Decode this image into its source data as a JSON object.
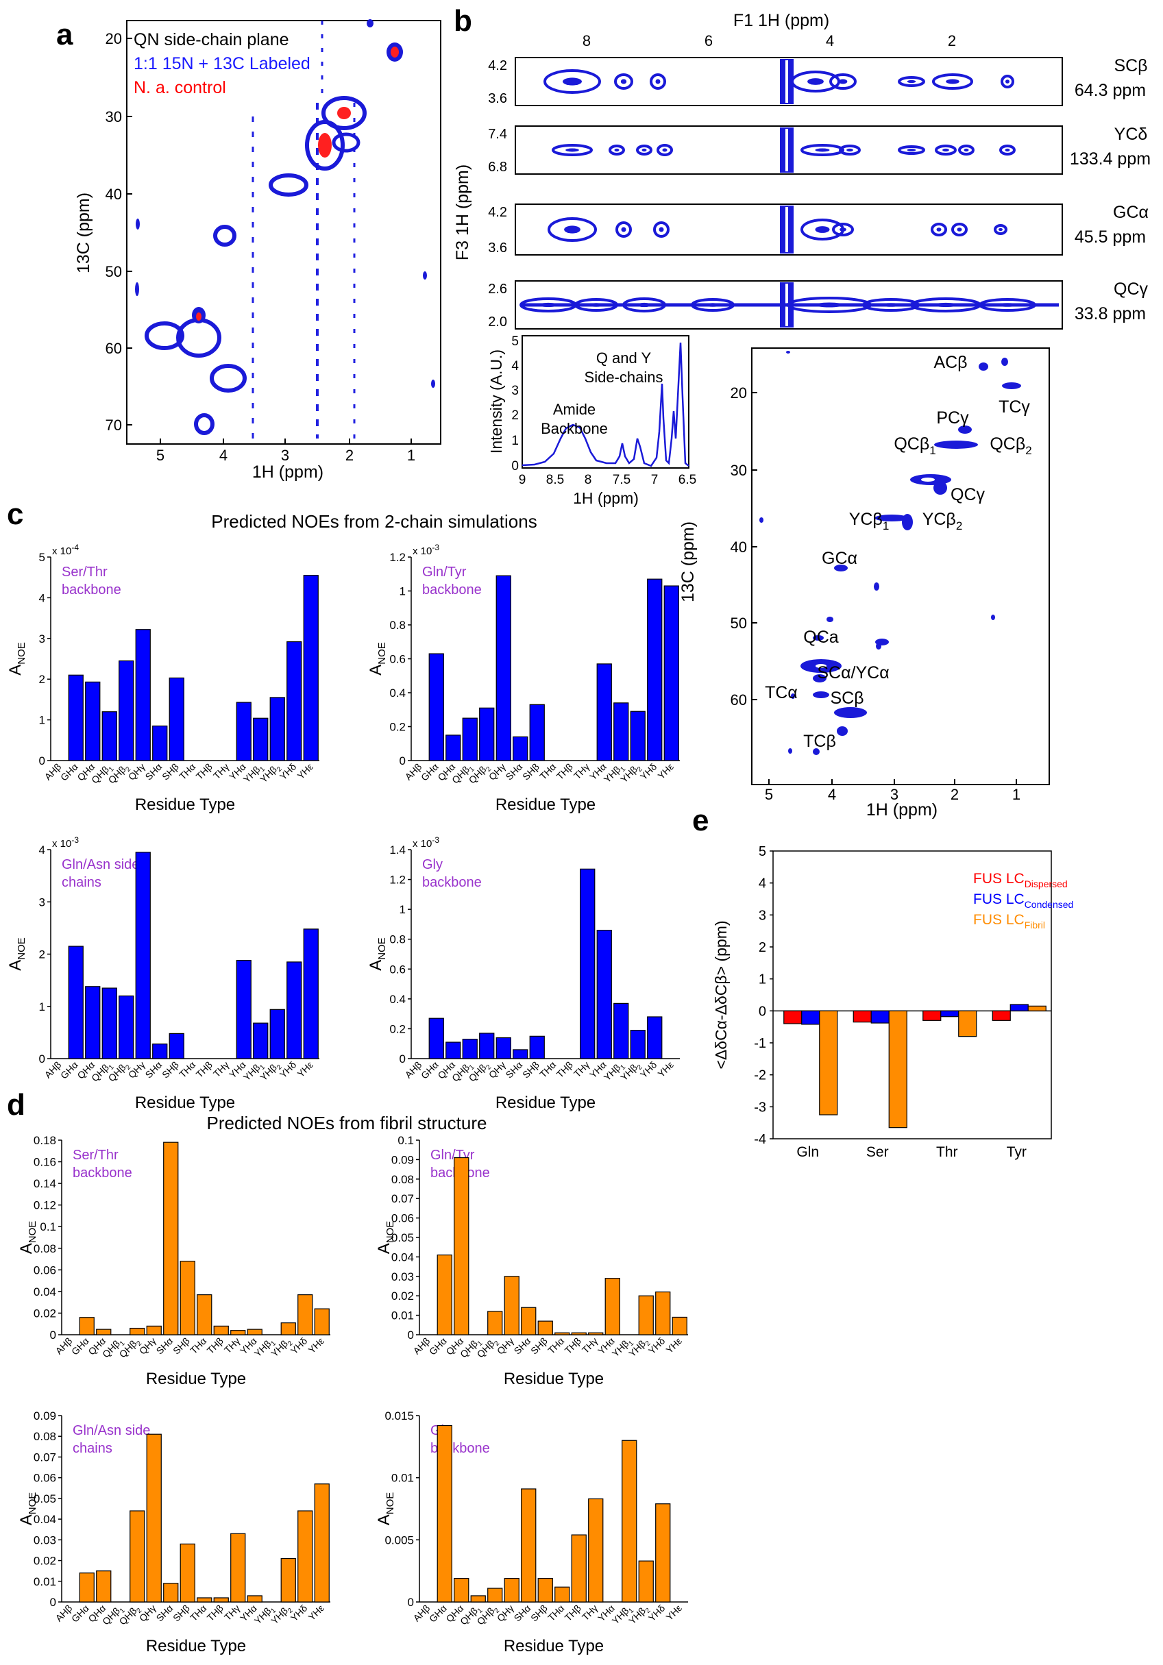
{
  "panels": {
    "a": {
      "label": "a",
      "legend": [
        "QN side-chain plane",
        "1:1 15N + 13C Labeled",
        "N. a. control"
      ],
      "legend_colors": [
        "#000000",
        "#1a1aff",
        "#ff0000"
      ],
      "xlabel": "1H (ppm)",
      "ylabel": "13C (ppm)",
      "xticks": [
        "5",
        "4",
        "3",
        "2",
        "1"
      ],
      "yticks": [
        "20",
        "30",
        "40",
        "50",
        "60",
        "70"
      ]
    },
    "b": {
      "label": "b",
      "f1_label": "F1 1H (ppm)",
      "f3_label": "F3 1H (ppm)",
      "top_ticks": [
        "8",
        "6",
        "4",
        "2"
      ],
      "strips": [
        {
          "name": "SCβ",
          "ppm": "64.3 ppm",
          "yticks": [
            "4.2",
            "3.6"
          ]
        },
        {
          "name": "YCδ",
          "ppm": "133.4 ppm",
          "yticks": [
            "7.4",
            "6.8"
          ]
        },
        {
          "name": "GCα",
          "ppm": "45.5 ppm",
          "yticks": [
            "4.2",
            "3.6"
          ]
        },
        {
          "name": "QCγ",
          "ppm": "33.8 ppm",
          "yticks": [
            "2.6",
            "2.0"
          ]
        }
      ],
      "spectrum1d": {
        "ylabel": "Intensity (A.U.)",
        "xlabel": "1H (ppm)",
        "xticks": [
          "9",
          "8.5",
          "8",
          "7.5",
          "7",
          "6.5"
        ],
        "yticks": [
          "0",
          "1",
          "2",
          "3",
          "4",
          "5"
        ],
        "annot1": [
          "Q and Y",
          "Side-chains"
        ],
        "annot2": [
          "Amide",
          "Backbone"
        ]
      },
      "hsqc": {
        "xlabel": "1H (ppm)",
        "ylabel": "13C (ppm)",
        "xticks": [
          "5",
          "4",
          "3",
          "2",
          "1"
        ],
        "yticks": [
          "20",
          "30",
          "40",
          "50",
          "60"
        ],
        "labels": [
          "ACβ",
          "TCγ",
          "PCγ",
          "QCβ1",
          "QCβ2",
          "QCγ",
          "YCβ1",
          "YCβ2",
          "GCα",
          "QCa",
          "SCα/YCα",
          "TCα",
          "SCβ",
          "TCβ"
        ]
      }
    },
    "c": {
      "label": "c",
      "title": "Predicted NOEs from 2-chain simulations"
    },
    "d": {
      "label": "d",
      "title": "Predicted NOEs from fibril structure"
    },
    "e": {
      "label": "e"
    }
  },
  "bar_ylabel": "ANOE",
  "bar_xlabel": "Residue Type",
  "residues": [
    "AHβ",
    "GHα",
    "QHα",
    "QHβ1",
    "QHβ2",
    "QHγ",
    "SHα",
    "SHβ",
    "THα",
    "THβ",
    "THγ",
    "YHα",
    "YHβ1",
    "YHβ2",
    "YHδ",
    "YHε"
  ],
  "chart_data": [
    {
      "id": "c1",
      "type": "bar",
      "name": "Ser/Thr backbone",
      "color": "#0000ff",
      "exponent": "x 10-4",
      "ylim": [
        0,
        5
      ],
      "yticks": [
        "0",
        "1",
        "2",
        "3",
        "4",
        "5"
      ],
      "values": [
        0,
        2.1,
        1.93,
        1.2,
        2.45,
        3.22,
        0.85,
        2.03,
        0,
        0,
        0,
        1.43,
        1.04,
        1.55,
        2.92,
        4.55
      ]
    },
    {
      "id": "c2",
      "type": "bar",
      "name": "Gln/Tyr backbone",
      "color": "#0000ff",
      "exponent": "x 10-3",
      "ylim": [
        0,
        1.2
      ],
      "yticks": [
        "0",
        "0.2",
        "0.4",
        "0.6",
        "0.8",
        "1",
        "1.2"
      ],
      "values": [
        0,
        0.63,
        0.15,
        0.25,
        0.31,
        1.09,
        0.14,
        0.33,
        0,
        0,
        0,
        0.57,
        0.34,
        0.29,
        1.07,
        1.03
      ]
    },
    {
      "id": "c3",
      "type": "bar",
      "name": "Gln/Asn side chains",
      "color": "#0000ff",
      "exponent": "x 10-3",
      "ylim": [
        0,
        4
      ],
      "yticks": [
        "0",
        "1",
        "2",
        "3",
        "4"
      ],
      "values": [
        0,
        2.15,
        1.38,
        1.35,
        1.2,
        3.95,
        0.28,
        0.48,
        0,
        0,
        0,
        1.88,
        0.68,
        0.94,
        1.85,
        2.48
      ]
    },
    {
      "id": "c4",
      "type": "bar",
      "name": "Gly backbone",
      "color": "#0000ff",
      "exponent": "x 10-3",
      "ylim": [
        0,
        1.4
      ],
      "yticks": [
        "0",
        "0.2",
        "0.4",
        "0.6",
        "0.8",
        "1",
        "1.2",
        "1.4"
      ],
      "values": [
        0,
        0.27,
        0.11,
        0.13,
        0.17,
        0.14,
        0.06,
        0.15,
        0,
        0,
        1.27,
        0.86,
        0.37,
        0.19,
        0.28,
        0
      ]
    },
    {
      "id": "d1",
      "type": "bar",
      "name": "Ser/Thr backbone",
      "color": "#ff8c00",
      "ylim": [
        0,
        0.18
      ],
      "yticks": [
        "0",
        "0.02",
        "0.04",
        "0.06",
        "0.08",
        "0.1",
        "0.12",
        "0.14",
        "0.16",
        "0.18"
      ],
      "values": [
        0,
        0.016,
        0.005,
        0,
        0.006,
        0.008,
        0.178,
        0.068,
        0.037,
        0.008,
        0.004,
        0.005,
        0,
        0.011,
        0.037,
        0.024
      ]
    },
    {
      "id": "d2",
      "type": "bar",
      "name": "Gln/Tyr backbone",
      "color": "#ff8c00",
      "ylim": [
        0,
        0.1
      ],
      "yticks": [
        "0",
        "0.01",
        "0.02",
        "0.03",
        "0.04",
        "0.05",
        "0.06",
        "0.07",
        "0.08",
        "0.09",
        "0.1"
      ],
      "values": [
        0,
        0.041,
        0.091,
        0,
        0.012,
        0.03,
        0.014,
        0.007,
        0.001,
        0.001,
        0.001,
        0.029,
        0,
        0.02,
        0.022,
        0.009
      ]
    },
    {
      "id": "d3",
      "type": "bar",
      "name": "Gln/Asn side chains",
      "color": "#ff8c00",
      "ylim": [
        0,
        0.09
      ],
      "yticks": [
        "0",
        "0.01",
        "0.02",
        "0.03",
        "0.04",
        "0.05",
        "0.06",
        "0.07",
        "0.08",
        "0.09"
      ],
      "values": [
        0,
        0.014,
        0.015,
        0,
        0.044,
        0.081,
        0.009,
        0.028,
        0.002,
        0.002,
        0.033,
        0.003,
        0,
        0.021,
        0.044,
        0.057
      ]
    },
    {
      "id": "d4",
      "type": "bar",
      "name": "Gly backbone",
      "color": "#ff8c00",
      "ylim": [
        0,
        0.015
      ],
      "yticks": [
        "0",
        "0.005",
        "0.01",
        "0.015"
      ],
      "values": [
        0,
        0.0142,
        0.0019,
        0.0005,
        0.0011,
        0.0019,
        0.0091,
        0.0019,
        0.0012,
        0.0054,
        0.0083,
        0,
        0.013,
        0.0033,
        0.0079,
        0
      ]
    },
    {
      "id": "e",
      "type": "bar",
      "ylabel": "<ΔδCα-ΔδCβ> (ppm)",
      "ylim": [
        -4,
        5
      ],
      "yticks": [
        "-4",
        "-3",
        "-2",
        "-1",
        "0",
        "1",
        "2",
        "3",
        "4",
        "5"
      ],
      "categories": [
        "Gln",
        "Ser",
        "Thr",
        "Tyr"
      ],
      "series": [
        {
          "name": "FUS LC",
          "sub": "Dispersed",
          "color": "#ff0000",
          "values": [
            -0.4,
            -0.35,
            -0.3,
            -0.3
          ]
        },
        {
          "name": "FUS LC",
          "sub": "Condensed",
          "color": "#0000ff",
          "values": [
            -0.42,
            -0.38,
            -0.18,
            0.2
          ]
        },
        {
          "name": "FUS LC",
          "sub": "Fibril",
          "color": "#ff8c00",
          "values": [
            -3.25,
            -3.65,
            -0.8,
            0.15
          ]
        }
      ]
    }
  ]
}
